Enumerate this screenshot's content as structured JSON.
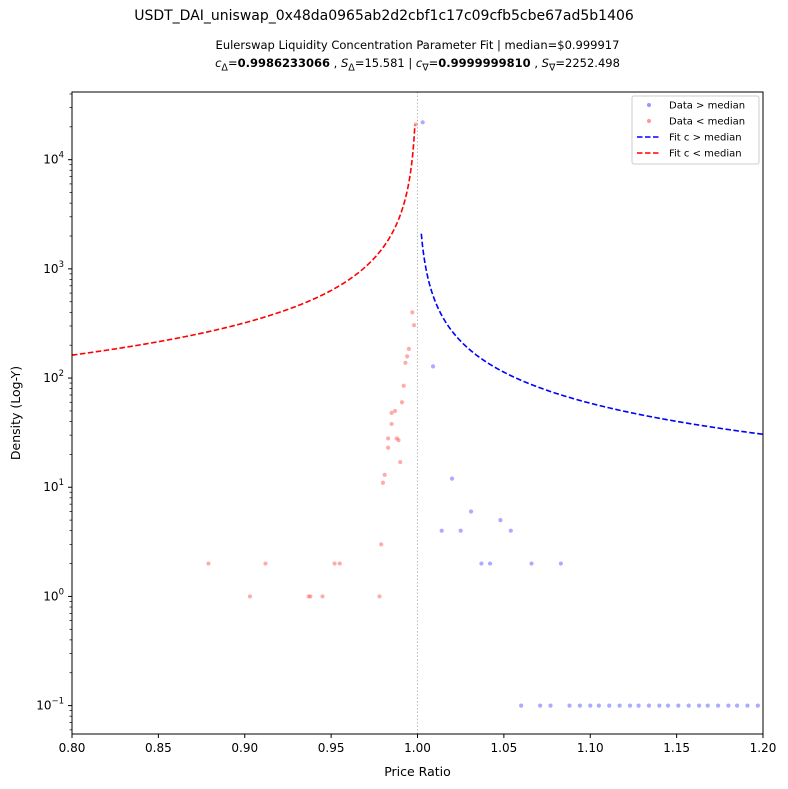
{
  "figure": {
    "suptitle": "USDT_DAI_uniswap_0x48da0965ab2d2cbf1c17c09cfb5cbe67ad5b1406",
    "subtitle_line1": "Eulerswap Liquidity Concentration Parameter Fit | median=$0.999917",
    "subtitle_line2": {
      "c_delta_label": "c",
      "c_delta_sub": "Δ",
      "c_delta_eq": "=",
      "c_delta_value": "0.9986233066",
      "s_delta_label": "S",
      "s_delta_sub": "Δ",
      "s_delta_value": "=15.581",
      "c_nabla_label": "c",
      "c_nabla_sub": "∇",
      "c_nabla_eq": "=",
      "c_nabla_value": "0.9999999810",
      "s_nabla_label": "S",
      "s_nabla_sub": "∇",
      "s_nabla_value": "=2252.498"
    }
  },
  "chart_data": {
    "type": "scatter",
    "xlabel": "Price Ratio",
    "ylabel": "Density (Log-Y)",
    "xlim": [
      0.8,
      1.2
    ],
    "ylim_log10": [
      -1.26,
      4.62
    ],
    "yscale": "log",
    "x_ticks": [
      "0.80",
      "0.85",
      "0.90",
      "0.95",
      "1.00",
      "1.05",
      "1.10",
      "1.15",
      "1.20"
    ],
    "y_ticks": [
      {
        "base": "10",
        "exp": "−1",
        "value": 0.1
      },
      {
        "base": "10",
        "exp": "0",
        "value": 1
      },
      {
        "base": "10",
        "exp": "1",
        "value": 10
      },
      {
        "base": "10",
        "exp": "2",
        "value": 100
      },
      {
        "base": "10",
        "exp": "3",
        "value": 1000
      },
      {
        "base": "10",
        "exp": "4",
        "value": 10000
      }
    ],
    "median_line_x": 0.999917,
    "legend_position": "upper right",
    "colors": {
      "above": "#6666ff",
      "below": "#ff6666",
      "fit_above": "#0000ff",
      "fit_below": "#ff0000",
      "median_line": "#aaaaaa"
    },
    "legend": [
      {
        "label": "Data > median",
        "kind": "point",
        "color": "#9999ff"
      },
      {
        "label": "Data < median",
        "kind": "point",
        "color": "#ff9999"
      },
      {
        "label": "Fit c > median",
        "kind": "dash",
        "color": "#0000ff"
      },
      {
        "label": "Fit c < median",
        "kind": "dash",
        "color": "#ff0000"
      }
    ],
    "series": [
      {
        "name": "Data > median",
        "points": [
          [
            1.003,
            22000
          ],
          [
            1.009,
            128
          ],
          [
            1.014,
            4
          ],
          [
            1.02,
            12
          ],
          [
            1.025,
            4
          ],
          [
            1.031,
            6
          ],
          [
            1.037,
            2
          ],
          [
            1.042,
            2
          ],
          [
            1.048,
            5
          ],
          [
            1.054,
            4
          ],
          [
            1.066,
            2
          ],
          [
            1.083,
            2
          ],
          [
            1.06,
            0.1
          ],
          [
            1.071,
            0.1
          ],
          [
            1.077,
            0.1
          ],
          [
            1.088,
            0.1
          ],
          [
            1.094,
            0.1
          ],
          [
            1.1,
            0.1
          ],
          [
            1.105,
            0.1
          ],
          [
            1.111,
            0.1
          ],
          [
            1.117,
            0.1
          ],
          [
            1.123,
            0.1
          ],
          [
            1.128,
            0.1
          ],
          [
            1.134,
            0.1
          ],
          [
            1.14,
            0.1
          ],
          [
            1.145,
            0.1
          ],
          [
            1.151,
            0.1
          ],
          [
            1.157,
            0.1
          ],
          [
            1.163,
            0.1
          ],
          [
            1.168,
            0.1
          ],
          [
            1.174,
            0.1
          ],
          [
            1.18,
            0.1
          ],
          [
            1.185,
            0.1
          ],
          [
            1.191,
            0.1
          ],
          [
            1.197,
            0.1
          ]
        ]
      },
      {
        "name": "Data < median",
        "points": [
          [
            0.879,
            2
          ],
          [
            0.903,
            1
          ],
          [
            0.912,
            2
          ],
          [
            0.937,
            1
          ],
          [
            0.938,
            1
          ],
          [
            0.945,
            1
          ],
          [
            0.952,
            2
          ],
          [
            0.955,
            2
          ],
          [
            0.978,
            1
          ],
          [
            0.979,
            3
          ],
          [
            0.98,
            11
          ],
          [
            0.981,
            13
          ],
          [
            0.983,
            23
          ],
          [
            0.983,
            28
          ],
          [
            0.985,
            48
          ],
          [
            0.985,
            38
          ],
          [
            0.987,
            50
          ],
          [
            0.988,
            28
          ],
          [
            0.989,
            27
          ],
          [
            0.99,
            17
          ],
          [
            0.991,
            60
          ],
          [
            0.992,
            85
          ],
          [
            0.993,
            138
          ],
          [
            0.994,
            158
          ],
          [
            0.995,
            185
          ],
          [
            0.997,
            400
          ],
          [
            0.998,
            305
          ],
          [
            0.999,
            21000
          ]
        ]
      }
    ]
  }
}
